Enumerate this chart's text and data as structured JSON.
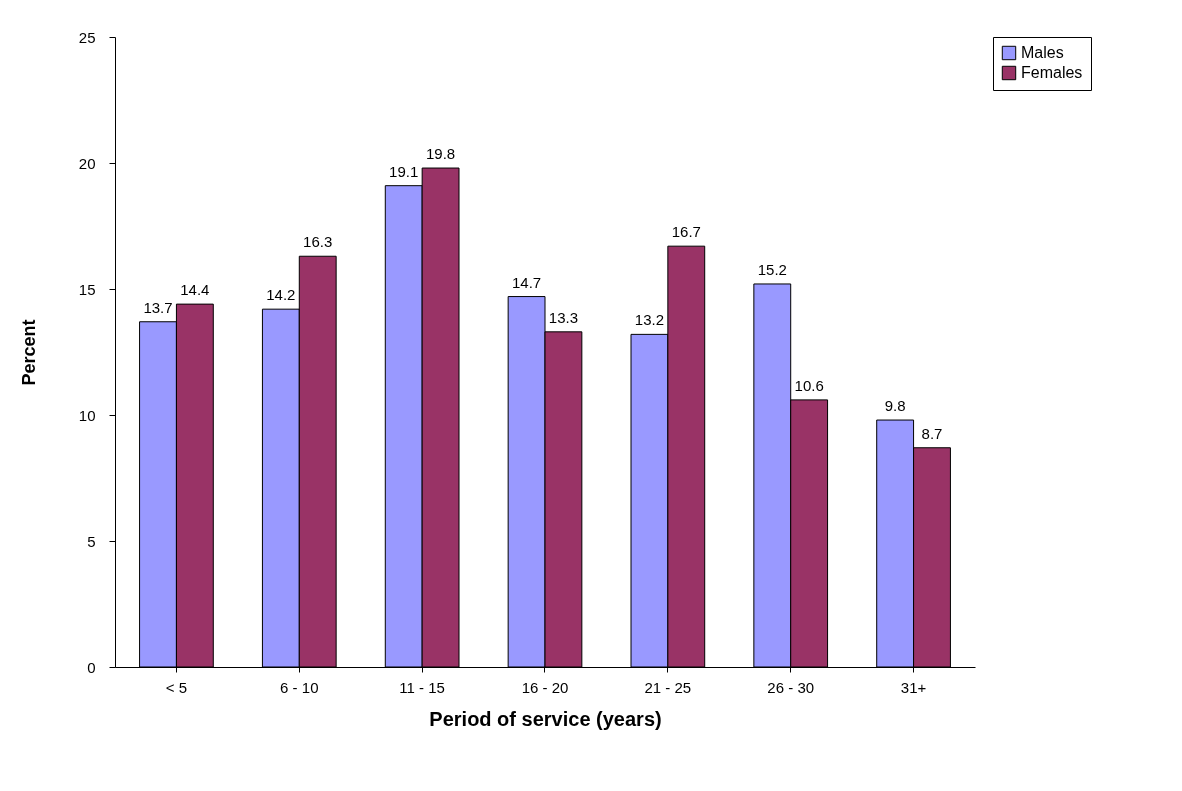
{
  "chart_data": {
    "type": "bar",
    "xlabel": "Period of service (years)",
    "ylabel": "Percent",
    "categories": [
      "< 5",
      "6 - 10",
      "11 - 15",
      "16 - 20",
      "21 - 25",
      "26 - 30",
      "31+"
    ],
    "series": [
      {
        "name": "Males",
        "color": "#9999ff",
        "values": [
          13.7,
          14.2,
          19.1,
          14.7,
          13.2,
          15.2,
          9.8
        ]
      },
      {
        "name": "Females",
        "color": "#993366",
        "values": [
          14.4,
          16.3,
          19.8,
          13.3,
          16.7,
          10.6,
          8.7
        ]
      }
    ],
    "ylim": [
      0,
      25
    ],
    "yticks": [
      0,
      5,
      10,
      15,
      20,
      25
    ],
    "grid": false,
    "legend": "right",
    "data_labels": true
  }
}
